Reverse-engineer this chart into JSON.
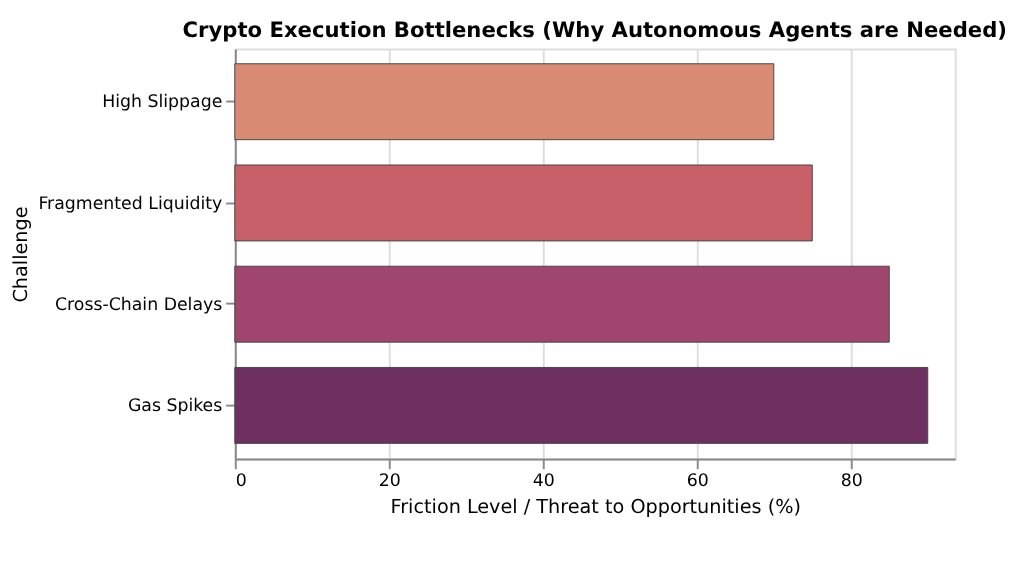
{
  "chart_data": {
    "type": "bar",
    "orientation": "horizontal",
    "title": "Crypto Execution Bottlenecks (Why Autonomous Agents are Needed)",
    "xlabel": "Friction Level / Threat to Opportunities (%)",
    "ylabel": "Challenge",
    "categories": [
      "High Slippage",
      "Fragmented Liquidity",
      "Cross-Chain Delays",
      "Gas Spikes"
    ],
    "values": [
      70,
      75,
      85,
      90
    ],
    "colors": [
      "#d98a73",
      "#c8606a",
      "#a0466e",
      "#6e3060"
    ],
    "xlim": [
      0,
      93.5
    ],
    "xticks": [
      0,
      20,
      40,
      60,
      80
    ],
    "grid": "x"
  }
}
